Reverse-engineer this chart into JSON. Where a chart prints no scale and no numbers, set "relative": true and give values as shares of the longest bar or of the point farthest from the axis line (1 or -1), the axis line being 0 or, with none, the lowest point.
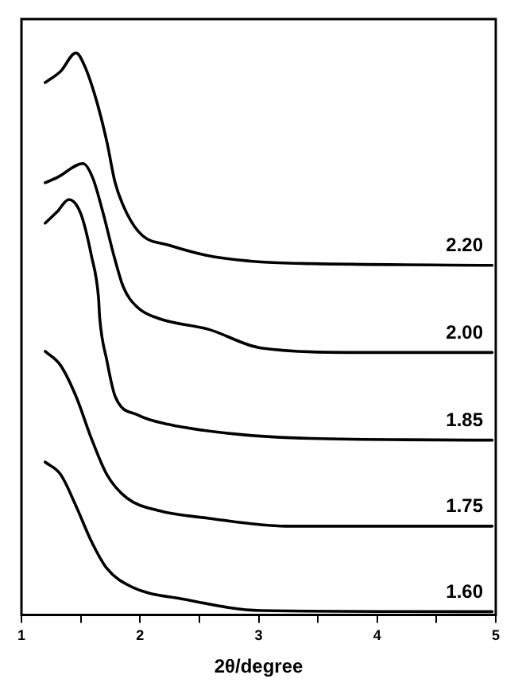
{
  "chart_data": {
    "type": "line",
    "xlabel": "2θ/degree",
    "relative": true,
    "xlim": [
      1,
      5
    ],
    "xticks": [
      1,
      {
        "value": 1.5,
        "label": null
      },
      2,
      {
        "value": 2.5,
        "label": null
      },
      3,
      {
        "value": 3.5,
        "label": null
      },
      4,
      {
        "value": 4.5,
        "label": null
      },
      5
    ],
    "grid": false,
    "legend": false,
    "marker": "none",
    "line_style": "solid",
    "series": [
      {
        "name": "2.20",
        "color": "#000000",
        "x": [
          1.2,
          1.33,
          1.46,
          1.53,
          1.63,
          1.72,
          1.79,
          1.89,
          2.02,
          2.24,
          2.58,
          3.02,
          3.45,
          4.97
        ],
        "values": [
          0.947,
          0.967,
          1.0,
          0.978,
          0.917,
          0.842,
          0.769,
          0.714,
          0.675,
          0.658,
          0.639,
          0.628,
          0.625,
          0.622
        ]
      },
      {
        "name": "2.00",
        "color": "#000000",
        "x": [
          1.2,
          1.3,
          1.52,
          1.6,
          1.69,
          1.78,
          1.86,
          1.98,
          2.15,
          2.58,
          3.02,
          3.88,
          4.97
        ],
        "values": [
          0.769,
          0.778,
          0.803,
          0.778,
          0.714,
          0.639,
          0.583,
          0.547,
          0.528,
          0.508,
          0.475,
          0.467,
          0.467
        ]
      },
      {
        "name": "1.85",
        "color": "#000000",
        "x": [
          1.2,
          1.3,
          1.4,
          1.5,
          1.59,
          1.65,
          1.66,
          1.72,
          1.79,
          1.98,
          2.24,
          2.8,
          3.45,
          4.97
        ],
        "values": [
          0.697,
          0.717,
          0.739,
          0.714,
          0.639,
          0.564,
          0.528,
          0.453,
          0.389,
          0.356,
          0.339,
          0.322,
          0.314,
          0.311
        ]
      },
      {
        "name": "1.75",
        "color": "#000000",
        "x": [
          1.2,
          1.33,
          1.46,
          1.59,
          1.72,
          1.89,
          2.15,
          2.58,
          3.23,
          4.97
        ],
        "values": [
          0.469,
          0.444,
          0.389,
          0.314,
          0.25,
          0.208,
          0.186,
          0.172,
          0.158,
          0.158
        ]
      },
      {
        "name": "1.60",
        "color": "#000000",
        "x": [
          1.2,
          1.33,
          1.46,
          1.59,
          1.72,
          1.93,
          2.37,
          3.02,
          4.97
        ],
        "values": [
          0.272,
          0.25,
          0.194,
          0.131,
          0.083,
          0.05,
          0.028,
          0.008,
          0.006
        ]
      }
    ]
  }
}
